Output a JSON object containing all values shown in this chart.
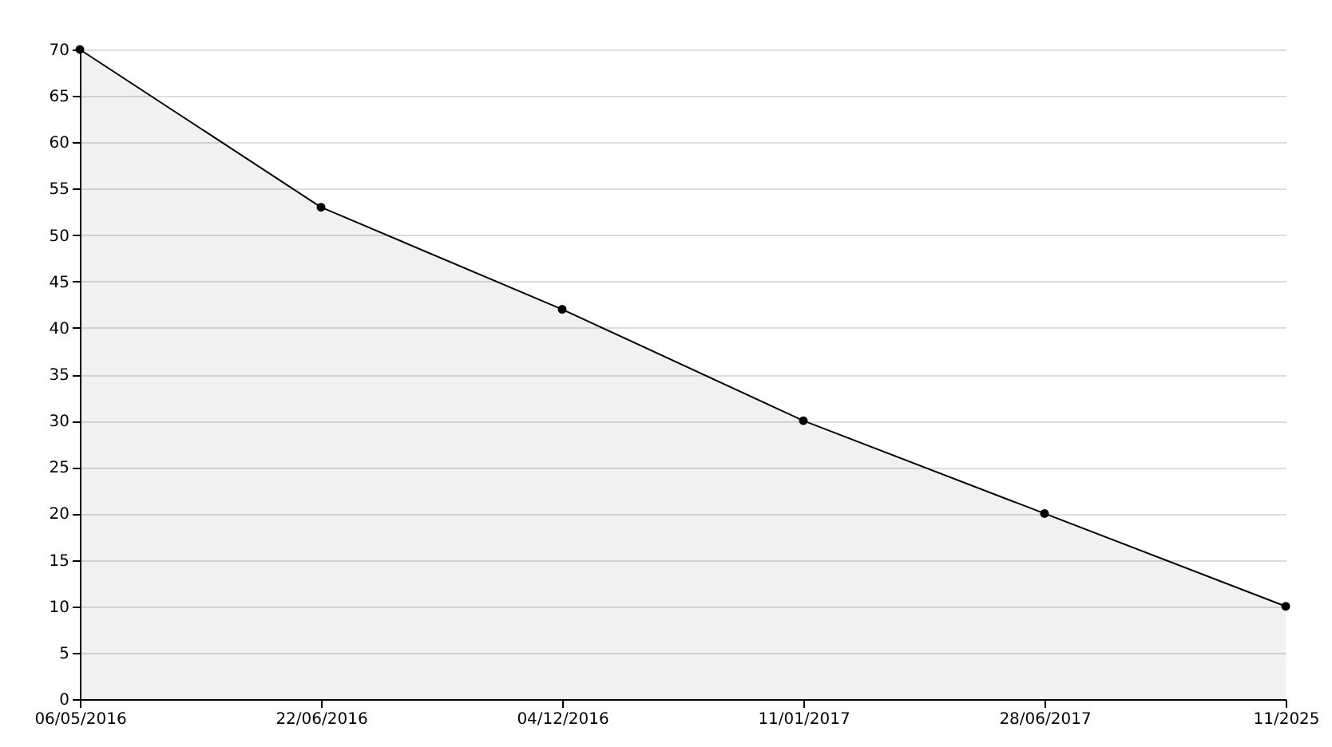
{
  "chart_data": {
    "type": "area",
    "categories": [
      "06/05/2016",
      "22/06/2016",
      "04/12/2016",
      "11/01/2017",
      "28/06/2017",
      "11/2025"
    ],
    "series": [
      {
        "color": "#000000",
        "values": [
          70,
          53,
          42,
          30,
          20,
          10
        ]
      }
    ],
    "ylim": [
      0,
      70
    ],
    "yticks": [
      0,
      5,
      10,
      15,
      20,
      25,
      30,
      35,
      40,
      45,
      50,
      55,
      60,
      65,
      70
    ],
    "grid": "y",
    "marker": "circle"
  }
}
